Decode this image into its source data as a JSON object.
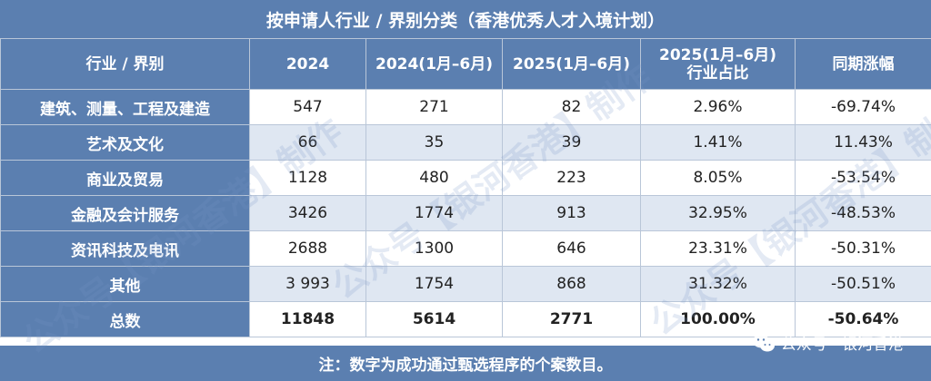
{
  "title": "按申请人行业 / 界别分类（香港优秀人才入境计划）",
  "headers": [
    "行业 / 界别",
    "2024",
    "2024(1月–6月)",
    "2025(1月–6月)",
    "2025(1月–6月)\n行业占比",
    "同期涨幅"
  ],
  "header_share_line1": "2025(1月–6月)",
  "header_share_line2": "行业占比",
  "rows": [
    {
      "cat": "建筑、测量、工程及建造",
      "y2024": "547",
      "h1_2024": "271",
      "h1_2025": "82",
      "share": "2.96%",
      "change": "-69.74%"
    },
    {
      "cat": "艺术及文化",
      "y2024": "66",
      "h1_2024": "35",
      "h1_2025": "39",
      "share": "1.41%",
      "change": "11.43%"
    },
    {
      "cat": "商业及贸易",
      "y2024": "1128",
      "h1_2024": "480",
      "h1_2025": "223",
      "share": "8.05%",
      "change": "-53.54%"
    },
    {
      "cat": "金融及会计服务",
      "y2024": "3426",
      "h1_2024": "1774",
      "h1_2025": "913",
      "share": "32.95%",
      "change": "-48.53%"
    },
    {
      "cat": "资讯科技及电讯",
      "y2024": "2688",
      "h1_2024": "1300",
      "h1_2025": "646",
      "share": "23.31%",
      "change": "-50.31%"
    },
    {
      "cat": "其他",
      "y2024": "3 993",
      "h1_2024": "1754",
      "h1_2025": "868",
      "share": "31.32%",
      "change": "-50.51%"
    }
  ],
  "total": {
    "cat": "总数",
    "y2024": "11848",
    "h1_2024": "5614",
    "h1_2025": "2771",
    "share": "100.00%",
    "change": "-50.64%"
  },
  "footnote": "注：数字为成功通过甄选程序的个案数目。",
  "watermark": "公众号【银河香港】制作",
  "wechat_label": "公众号 · 银河香港",
  "colors": {
    "header_bg": "#5b7fb0",
    "alt_row": "#dfe7f2",
    "border": "#b9c6d8"
  }
}
